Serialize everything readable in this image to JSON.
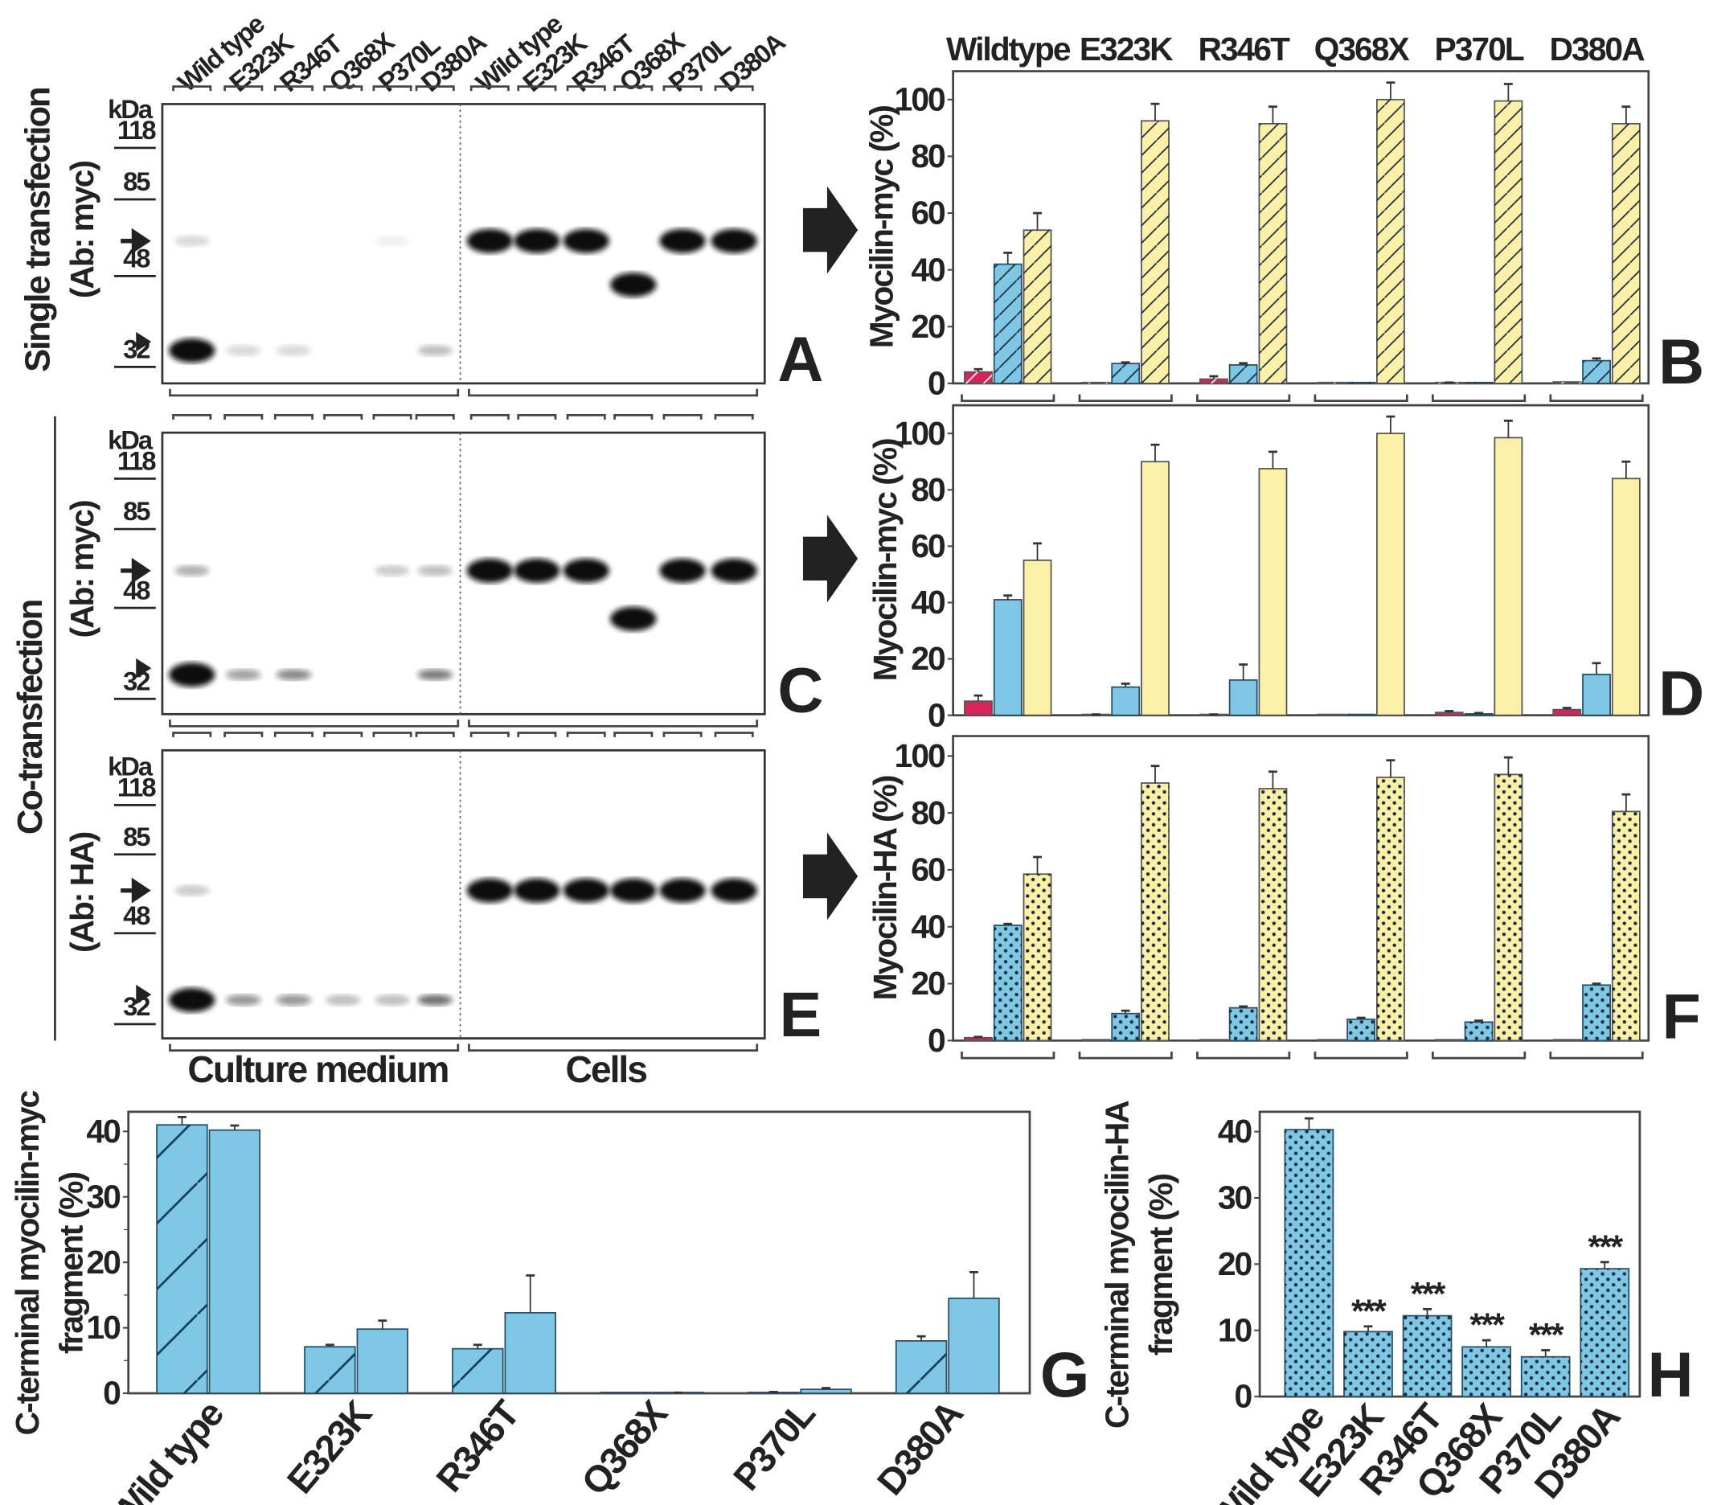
{
  "colors": {
    "medium": "#d6245a",
    "cell_fragment": "#7ec8e6",
    "cells_full": "#fbf0a8",
    "blue_stroke": "#1a6fa0",
    "text": "#222222"
  },
  "variants": [
    "Wild type",
    "E323K",
    "R346T",
    "Q368X",
    "P370L",
    "D380A"
  ],
  "chart_variants_header": [
    "Wildtype",
    "E323K",
    "R346T",
    "Q368X",
    "P370L",
    "D380A"
  ],
  "blots": {
    "lane_labels": [
      "Wild type",
      "E323K",
      "R346T",
      "Q368X",
      "P370L",
      "D380A",
      "Wild type",
      "E323K",
      "R346T",
      "Q368X",
      "P370L",
      "D380A"
    ],
    "kda_unit": "kDa",
    "kda_markers": [
      "118",
      "85",
      "48",
      "32"
    ],
    "section_labels": {
      "medium": "Culture medium",
      "cells": "Cells"
    },
    "row_labels": {
      "single": "Single transfection",
      "single_ab": "(Ab: myc)",
      "co": "Co-transfection",
      "co_ab_myc": "(Ab: myc)",
      "co_ab_ha": "(Ab: HA)"
    },
    "panels": [
      {
        "letter": "A",
        "bands": [
          {
            "lane": 0,
            "band": "fragment",
            "intensity": 1.0
          },
          {
            "lane": 0,
            "band": "full-length",
            "intensity": 0.15
          },
          {
            "lane": 1,
            "band": "fragment",
            "intensity": 0.15
          },
          {
            "lane": 2,
            "band": "fragment",
            "intensity": 0.15
          },
          {
            "lane": 5,
            "band": "fragment",
            "intensity": 0.25
          },
          {
            "lane": 4,
            "band": "full-length",
            "intensity": 0.06
          },
          {
            "lane": 6,
            "band": "full-length",
            "intensity": 1.0
          },
          {
            "lane": 7,
            "band": "full-length",
            "intensity": 1.0
          },
          {
            "lane": 8,
            "band": "full-length",
            "intensity": 1.0
          },
          {
            "lane": 9,
            "band": "truncated",
            "intensity": 1.0
          },
          {
            "lane": 10,
            "band": "full-length",
            "intensity": 1.0
          },
          {
            "lane": 11,
            "band": "full-length",
            "intensity": 1.0
          }
        ]
      },
      {
        "letter": "C",
        "bands": [
          {
            "lane": 0,
            "band": "fragment",
            "intensity": 1.0
          },
          {
            "lane": 0,
            "band": "full-length",
            "intensity": 0.3
          },
          {
            "lane": 1,
            "band": "fragment",
            "intensity": 0.4
          },
          {
            "lane": 2,
            "band": "fragment",
            "intensity": 0.5
          },
          {
            "lane": 4,
            "band": "full-length",
            "intensity": 0.2
          },
          {
            "lane": 5,
            "band": "full-length",
            "intensity": 0.25
          },
          {
            "lane": 5,
            "band": "fragment",
            "intensity": 0.55
          },
          {
            "lane": 6,
            "band": "full-length",
            "intensity": 1.0
          },
          {
            "lane": 7,
            "band": "full-length",
            "intensity": 1.0
          },
          {
            "lane": 8,
            "band": "full-length",
            "intensity": 1.0
          },
          {
            "lane": 9,
            "band": "truncated",
            "intensity": 1.0
          },
          {
            "lane": 10,
            "band": "full-length",
            "intensity": 1.0
          },
          {
            "lane": 11,
            "band": "full-length",
            "intensity": 1.0
          }
        ]
      },
      {
        "letter": "E",
        "bands": [
          {
            "lane": 0,
            "band": "fragment",
            "intensity": 1.0
          },
          {
            "lane": 0,
            "band": "full-length",
            "intensity": 0.2
          },
          {
            "lane": 1,
            "band": "fragment",
            "intensity": 0.45
          },
          {
            "lane": 2,
            "band": "fragment",
            "intensity": 0.45
          },
          {
            "lane": 3,
            "band": "fragment",
            "intensity": 0.25
          },
          {
            "lane": 4,
            "band": "fragment",
            "intensity": 0.25
          },
          {
            "lane": 5,
            "band": "fragment",
            "intensity": 0.6
          },
          {
            "lane": 6,
            "band": "full-length",
            "intensity": 1.0
          },
          {
            "lane": 7,
            "band": "full-length",
            "intensity": 1.0
          },
          {
            "lane": 8,
            "band": "full-length",
            "intensity": 1.0
          },
          {
            "lane": 9,
            "band": "full-length",
            "intensity": 1.0
          },
          {
            "lane": 10,
            "band": "full-length",
            "intensity": 1.0
          },
          {
            "lane": 11,
            "band": "full-length",
            "intensity": 1.0
          }
        ]
      }
    ]
  },
  "chart_data": [
    {
      "panel": "B",
      "type": "bar",
      "pattern": "hatched",
      "ylabel": "Myocilin-myc (%)",
      "ylim": [
        0,
        110
      ],
      "yticks": [
        0,
        20,
        40,
        60,
        80,
        100
      ],
      "categories": [
        "Wildtype",
        "E323K",
        "R346T",
        "Q368X",
        "P370L",
        "D380A"
      ],
      "series": [
        {
          "color": "#d6245a",
          "values": [
            4,
            0,
            1.5,
            0,
            0,
            0.5
          ],
          "errors": [
            1,
            0,
            1,
            0,
            0.3,
            0
          ]
        },
        {
          "color": "#7ec8e6",
          "values": [
            42,
            7,
            6.5,
            0,
            0,
            8
          ],
          "errors": [
            4,
            0.4,
            0.6,
            0,
            0,
            0.8
          ]
        },
        {
          "color": "#fbf0a8",
          "values": [
            54,
            92.5,
            91.5,
            100,
            99.5,
            91.5
          ],
          "errors": [
            6,
            6,
            6,
            6,
            6,
            6
          ]
        }
      ]
    },
    {
      "panel": "D",
      "type": "bar",
      "pattern": "solid",
      "ylabel": "Myocilin-myc (%)",
      "ylim": [
        0,
        110
      ],
      "yticks": [
        0,
        20,
        40,
        60,
        80,
        100
      ],
      "categories": [
        "Wildtype",
        "E323K",
        "R346T",
        "Q368X",
        "P370L",
        "D380A"
      ],
      "series": [
        {
          "color": "#d6245a",
          "values": [
            5,
            0,
            0,
            0,
            1,
            2
          ],
          "errors": [
            2,
            0.3,
            0.3,
            0,
            0.5,
            0.6
          ]
        },
        {
          "color": "#7ec8e6",
          "values": [
            41,
            10,
            12.5,
            0,
            0.5,
            14.5
          ],
          "errors": [
            1.5,
            1.2,
            5.5,
            0,
            0.3,
            4
          ]
        },
        {
          "color": "#fbf0a8",
          "values": [
            55,
            90,
            87.5,
            100,
            98.5,
            84
          ],
          "errors": [
            6,
            6,
            6,
            6,
            6,
            6
          ]
        }
      ]
    },
    {
      "panel": "F",
      "type": "bar",
      "pattern": "dotted",
      "ylabel": "Myocilin-HA (%)",
      "ylim": [
        0,
        107
      ],
      "yticks": [
        0,
        20,
        40,
        60,
        80,
        100
      ],
      "categories": [
        "Wildtype",
        "E323K",
        "R346T",
        "Q368X",
        "P370L",
        "D380A"
      ],
      "series": [
        {
          "color": "#d6245a",
          "values": [
            1,
            0,
            0,
            0,
            0,
            0
          ],
          "errors": [
            0.3,
            0,
            0,
            0,
            0,
            0
          ]
        },
        {
          "color": "#7ec8e6",
          "values": [
            40.5,
            9.5,
            11.5,
            7.5,
            6.5,
            19.5
          ],
          "errors": [
            0.5,
            1,
            0.5,
            0.5,
            0.5,
            0.5
          ]
        },
        {
          "color": "#fbf0a8",
          "values": [
            58.5,
            90.5,
            88.5,
            92.5,
            93.5,
            80.5
          ],
          "errors": [
            6,
            6,
            6,
            6,
            6,
            6
          ]
        }
      ]
    },
    {
      "panel": "G",
      "type": "bar",
      "ylabel": "C-terminal myocilin-myc",
      "ylabel2": "fragment (%)",
      "ylim": [
        0,
        43
      ],
      "yticks": [
        0,
        10,
        20,
        30,
        40
      ],
      "categories": [
        "Wild type",
        "E323K",
        "R346T",
        "Q368X",
        "P370L",
        "D380A"
      ],
      "series": [
        {
          "color": "#7ec8e6",
          "pattern": "hatched",
          "values": [
            41,
            7.1,
            6.8,
            0,
            0.1,
            8
          ],
          "errors": [
            1.2,
            0.3,
            0.6,
            0,
            0.1,
            0.7
          ]
        },
        {
          "color": "#7ec8e6",
          "pattern": "solid",
          "values": [
            40.2,
            9.8,
            12.3,
            0,
            0.6,
            14.5
          ],
          "errors": [
            0.7,
            1.3,
            5.7,
            0.1,
            0.2,
            4
          ]
        }
      ]
    },
    {
      "panel": "H",
      "type": "bar",
      "ylabel": "C-terminal myocilin-HA",
      "ylabel2": "fragment (%)",
      "ylim": [
        0,
        43
      ],
      "yticks": [
        0,
        10,
        20,
        30,
        40
      ],
      "categories": [
        "Wild type",
        "E323K",
        "R346T",
        "Q368X",
        "P370L",
        "D380A"
      ],
      "series": [
        {
          "color": "#7ec8e6",
          "pattern": "dotted",
          "values": [
            40.3,
            9.8,
            12.2,
            7.5,
            6,
            19.3
          ],
          "errors": [
            1.7,
            0.8,
            1,
            1,
            1,
            1
          ]
        }
      ],
      "annotations": [
        "",
        "***",
        "***",
        "***",
        "***",
        "***"
      ]
    }
  ]
}
